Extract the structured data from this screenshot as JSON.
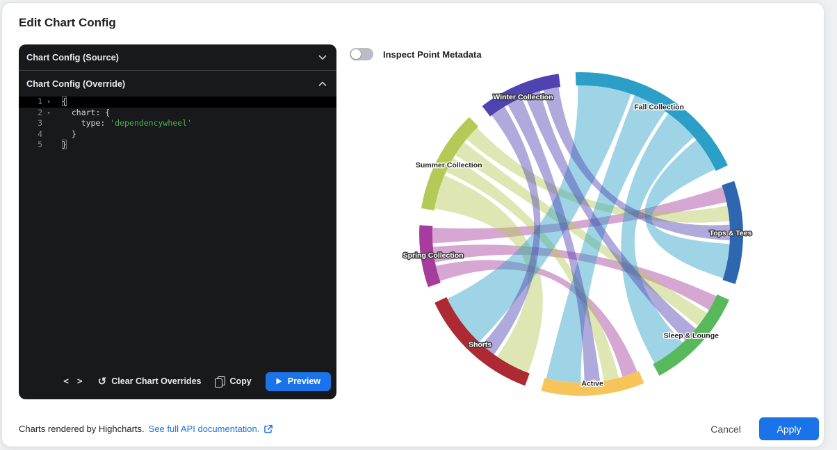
{
  "dialog": {
    "title": "Edit Chart Config"
  },
  "editor": {
    "source_header": "Chart Config (Source)",
    "override_header": "Chart Config (Override)",
    "code_lines": [
      {
        "num": 1,
        "fold": true,
        "active": true,
        "tokens": [
          {
            "t": "{",
            "box": true
          }
        ]
      },
      {
        "num": 2,
        "fold": true,
        "tokens": [
          {
            "t": "  chart: {"
          }
        ]
      },
      {
        "num": 3,
        "tokens": [
          {
            "t": "    type: "
          },
          {
            "t": "'dependencywheel'",
            "cls": "str"
          }
        ]
      },
      {
        "num": 4,
        "tokens": [
          {
            "t": "  }"
          }
        ]
      },
      {
        "num": 5,
        "tokens": [
          {
            "t": "}",
            "box": true
          }
        ]
      }
    ],
    "toolbar": {
      "code_glyph": "< >",
      "clear_label": "Clear Chart Overrides",
      "copy_label": "Copy",
      "preview_label": "Preview"
    }
  },
  "inspect_toggle": {
    "label": "Inspect Point Metadata",
    "state": "off"
  },
  "chart_data": {
    "type": "dependencywheel",
    "title": "",
    "legend": "none",
    "start_angle": -2,
    "gap_degrees": 6,
    "nodes": [
      {
        "id": "Fall Collection",
        "color": "#2b9fc7"
      },
      {
        "id": "Tops & Tees",
        "color": "#2e66b0"
      },
      {
        "id": "Sleep & Lounge",
        "color": "#57b95c"
      },
      {
        "id": "Active",
        "color": "#f7c45a"
      },
      {
        "id": "Shorts",
        "color": "#ad2a32"
      },
      {
        "id": "Spring Collection",
        "color": "#a63c9d"
      },
      {
        "id": "Summer Collection",
        "color": "#b5ca56"
      },
      {
        "id": "Winter Collection",
        "color": "#4f43b2"
      }
    ],
    "links": [
      {
        "from": "Spring Collection",
        "to": "Tops & Tees",
        "weight": 1
      },
      {
        "from": "Spring Collection",
        "to": "Sleep & Lounge",
        "weight": 1
      },
      {
        "from": "Spring Collection",
        "to": "Active",
        "weight": 1
      },
      {
        "from": "Summer Collection",
        "to": "Tops & Tees",
        "weight": 1
      },
      {
        "from": "Summer Collection",
        "to": "Sleep & Lounge",
        "weight": 1
      },
      {
        "from": "Summer Collection",
        "to": "Active",
        "weight": 1
      },
      {
        "from": "Summer Collection",
        "to": "Shorts",
        "weight": 2
      },
      {
        "from": "Fall Collection",
        "to": "Tops & Tees",
        "weight": 2
      },
      {
        "from": "Fall Collection",
        "to": "Sleep & Lounge",
        "weight": 2
      },
      {
        "from": "Fall Collection",
        "to": "Active",
        "weight": 2
      },
      {
        "from": "Fall Collection",
        "to": "Shorts",
        "weight": 3
      },
      {
        "from": "Winter Collection",
        "to": "Tops & Tees",
        "weight": 1
      },
      {
        "from": "Winter Collection",
        "to": "Sleep & Lounge",
        "weight": 1
      },
      {
        "from": "Winter Collection",
        "to": "Active",
        "weight": 1
      },
      {
        "from": "Winter Collection",
        "to": "Shorts",
        "weight": 1
      }
    ]
  },
  "footer": {
    "note": "Charts rendered by Highcharts.",
    "link_label": "See full API documentation.",
    "cancel_label": "Cancel",
    "apply_label": "Apply"
  },
  "colors": {
    "accent": "#1a73e8",
    "string_green": "#41b84c"
  }
}
